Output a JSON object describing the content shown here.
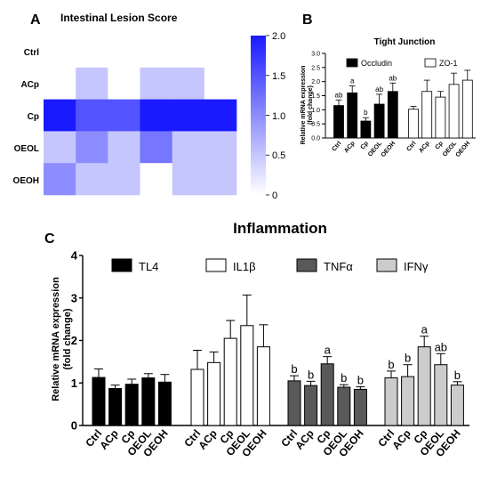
{
  "panels": {
    "a": {
      "letter": "A",
      "title": "Intestinal Lesion Score",
      "rows": [
        "Ctrl",
        "ACp",
        "Cp",
        "OEOL",
        "OEOH"
      ],
      "colorbar": {
        "min": 0,
        "max": 2,
        "ticks": [
          "2.0",
          "1.5",
          "1.0",
          "0.5",
          "0"
        ],
        "low_color": "#ffffff",
        "high_color": "#1a1aff"
      }
    },
    "b": {
      "letter": "B",
      "title": "Tight Junction",
      "ylabel_1": "Relative mRNA expression",
      "ylabel_2": "(fold change)",
      "yticks": [
        "0.0",
        "0.5",
        "1.0",
        "1.5",
        "2.0",
        "2.5",
        "3.0"
      ],
      "categories": [
        "Ctrl",
        "ACp",
        "Cp",
        "OEOL",
        "OEOH"
      ],
      "legend": [
        "Occludin",
        "ZO-1"
      ]
    },
    "c": {
      "letter": "C",
      "title": "Inflammation",
      "ylabel_1": "Relative mRNA expression",
      "ylabel_2": "(fold change)",
      "yticks": [
        "0",
        "1",
        "2",
        "3",
        "4"
      ],
      "categories": [
        "Ctrl",
        "ACp",
        "Cp",
        "OEOL",
        "OEOH"
      ],
      "legend": [
        "TL4",
        "IL1β",
        "TNFα",
        "IFNγ"
      ]
    }
  },
  "chart_data": [
    {
      "type": "heatmap",
      "title": "Intestinal Lesion Score",
      "rows": [
        "Ctrl",
        "ACp",
        "Cp",
        "OEOL",
        "OEOH"
      ],
      "columns": 6,
      "values": [
        [
          0,
          0,
          0,
          0,
          0,
          0
        ],
        [
          0,
          0.5,
          0,
          0.5,
          0.5,
          0
        ],
        [
          2,
          1.5,
          1.5,
          2,
          2,
          2
        ],
        [
          0.5,
          1,
          0.5,
          1.2,
          0.5,
          0.5
        ],
        [
          1,
          0.5,
          0.5,
          0,
          0.5,
          0.5
        ]
      ],
      "zlim": [
        0,
        2
      ],
      "colors": {
        "low": "#ffffff",
        "high": "#1a1aff"
      }
    },
    {
      "type": "bar",
      "title": "Tight Junction",
      "ylabel": "Relative mRNA expression (fold change)",
      "ylim": [
        0,
        3
      ],
      "categories": [
        "Ctrl",
        "ACp",
        "Cp",
        "OEOL",
        "OEOH"
      ],
      "series": [
        {
          "name": "Occludin",
          "color": "#000000",
          "values": [
            1.15,
            1.6,
            0.6,
            1.2,
            1.65
          ],
          "errors": [
            0.2,
            0.25,
            0.12,
            0.35,
            0.3
          ],
          "labels": [
            "ab",
            "a",
            "b",
            "ab",
            "ab"
          ]
        },
        {
          "name": "ZO-1",
          "color": "#ffffff",
          "values": [
            1.02,
            1.65,
            1.45,
            1.9,
            2.05
          ],
          "errors": [
            0.1,
            0.4,
            0.2,
            0.4,
            0.35
          ],
          "labels": [
            "",
            "",
            "",
            "",
            ""
          ]
        }
      ]
    },
    {
      "type": "bar",
      "title": "Inflammation",
      "ylabel": "Relative mRNA expression (fold change)",
      "ylim": [
        0,
        4
      ],
      "categories": [
        "Ctrl",
        "ACp",
        "Cp",
        "OEOL",
        "OEOH"
      ],
      "series": [
        {
          "name": "TL4",
          "color": "#000000",
          "values": [
            1.13,
            0.87,
            0.97,
            1.12,
            1.02
          ],
          "errors": [
            0.2,
            0.08,
            0.12,
            0.1,
            0.18
          ],
          "labels": [
            "",
            "",
            "",
            "",
            ""
          ]
        },
        {
          "name": "IL1β",
          "color": "#ffffff",
          "values": [
            1.32,
            1.48,
            2.05,
            2.35,
            1.85
          ],
          "errors": [
            0.45,
            0.25,
            0.42,
            0.72,
            0.52
          ],
          "labels": [
            "",
            "",
            "",
            "",
            ""
          ]
        },
        {
          "name": "TNFα",
          "color": "#595959",
          "values": [
            1.05,
            0.94,
            1.45,
            0.9,
            0.85
          ],
          "errors": [
            0.12,
            0.1,
            0.17,
            0.06,
            0.06
          ],
          "labels": [
            "b",
            "b",
            "a",
            "b",
            "b"
          ]
        },
        {
          "name": "IFNγ",
          "color": "#cccccc",
          "values": [
            1.12,
            1.15,
            1.85,
            1.43,
            0.95
          ],
          "errors": [
            0.16,
            0.28,
            0.25,
            0.26,
            0.08
          ],
          "labels": [
            "b",
            "b",
            "a",
            "ab",
            "b"
          ]
        }
      ]
    }
  ]
}
